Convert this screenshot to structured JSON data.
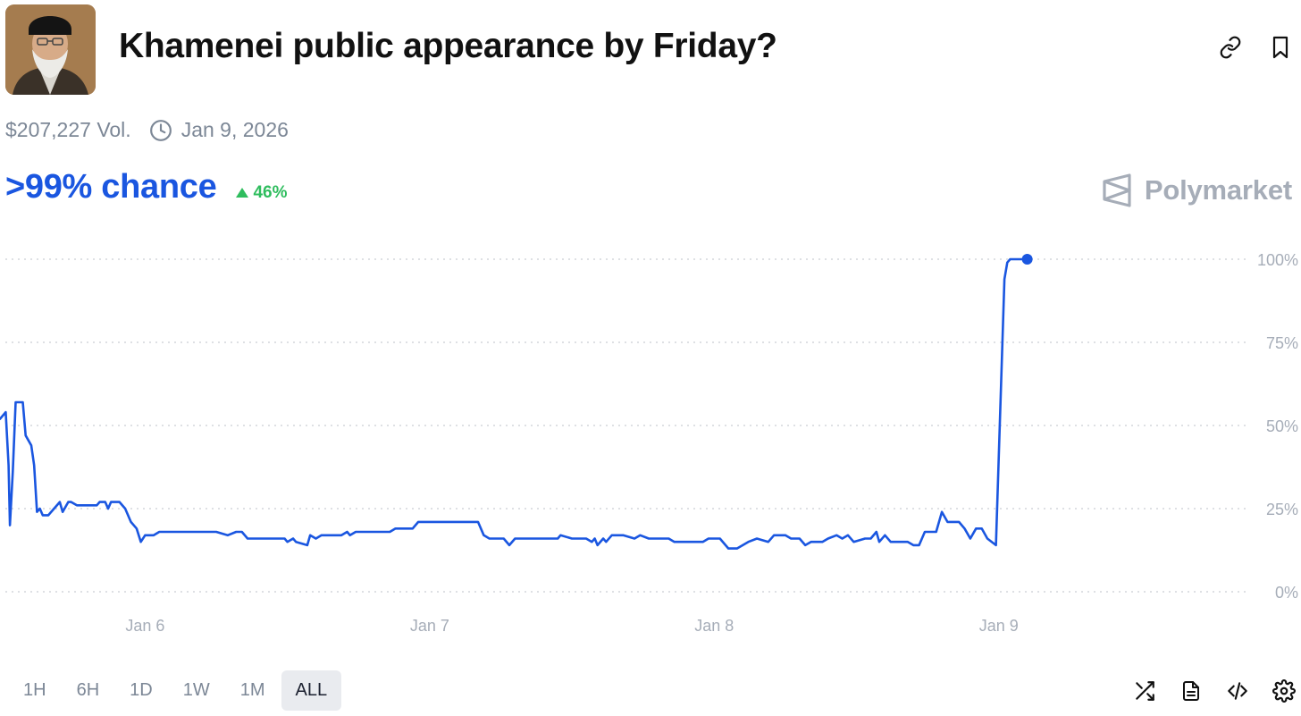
{
  "header": {
    "title": "Khamenei public appearance by Friday?",
    "volume": "$207,227 Vol.",
    "date": "Jan 9, 2026"
  },
  "summary": {
    "chance": ">99% chance",
    "change": "46%",
    "change_direction": "up"
  },
  "brand": {
    "name": "Polymarket"
  },
  "colors": {
    "accent": "#1a56e0",
    "positive": "#2fbd5e",
    "muted": "#7c8796"
  },
  "icons": {
    "link": "link-icon",
    "bookmark": "bookmark-icon",
    "clock": "clock-icon",
    "shuffle": "shuffle-icon",
    "document": "document-icon",
    "embed": "embed-icon",
    "settings": "gear-icon",
    "brand": "polymarket-logo-icon"
  },
  "time_ranges": {
    "options": [
      "1H",
      "6H",
      "1D",
      "1W",
      "1M",
      "ALL"
    ],
    "selected": "ALL"
  },
  "chart_data": {
    "type": "line",
    "x_unit": "days (Jan 5, 2026 = day 5)",
    "x_ticks": [
      {
        "x": 6,
        "label": "Jan 6"
      },
      {
        "x": 7,
        "label": "Jan 7"
      },
      {
        "x": 8,
        "label": "Jan 8"
      },
      {
        "x": 9,
        "label": "Jan 9"
      }
    ],
    "xlim": [
      5.49,
      9.88
    ],
    "y_ticks": [
      {
        "y": 0,
        "label": "0%"
      },
      {
        "y": 25,
        "label": "25%"
      },
      {
        "y": 50,
        "label": "50%"
      },
      {
        "y": 75,
        "label": "75%"
      },
      {
        "y": 100,
        "label": "100%"
      }
    ],
    "ylim": [
      0,
      100
    ],
    "grid": true,
    "series": [
      {
        "color": "#1a56e0",
        "points": [
          [
            5.49,
            52
          ],
          [
            5.51,
            54
          ],
          [
            5.52,
            38
          ],
          [
            5.525,
            20
          ],
          [
            5.535,
            36
          ],
          [
            5.545,
            57
          ],
          [
            5.57,
            57
          ],
          [
            5.58,
            47
          ],
          [
            5.6,
            44
          ],
          [
            5.61,
            38
          ],
          [
            5.62,
            24
          ],
          [
            5.63,
            25
          ],
          [
            5.64,
            23
          ],
          [
            5.66,
            23
          ],
          [
            5.7,
            27
          ],
          [
            5.71,
            24
          ],
          [
            5.73,
            27
          ],
          [
            5.74,
            27
          ],
          [
            5.76,
            26
          ],
          [
            5.79,
            26
          ],
          [
            5.83,
            26
          ],
          [
            5.84,
            27
          ],
          [
            5.86,
            27
          ],
          [
            5.87,
            25
          ],
          [
            5.88,
            27
          ],
          [
            5.91,
            27
          ],
          [
            5.93,
            25
          ],
          [
            5.95,
            21
          ],
          [
            5.97,
            19
          ],
          [
            5.985,
            15
          ],
          [
            6.0,
            17
          ],
          [
            6.03,
            17
          ],
          [
            6.05,
            18
          ],
          [
            6.1,
            18
          ],
          [
            6.2,
            18
          ],
          [
            6.25,
            18
          ],
          [
            6.29,
            17
          ],
          [
            6.32,
            18
          ],
          [
            6.34,
            18
          ],
          [
            6.36,
            16
          ],
          [
            6.4,
            16
          ],
          [
            6.45,
            16
          ],
          [
            6.49,
            16
          ],
          [
            6.5,
            15
          ],
          [
            6.52,
            16
          ],
          [
            6.53,
            15
          ],
          [
            6.57,
            14
          ],
          [
            6.58,
            17
          ],
          [
            6.6,
            16
          ],
          [
            6.62,
            17
          ],
          [
            6.65,
            17
          ],
          [
            6.67,
            17
          ],
          [
            6.69,
            17
          ],
          [
            6.71,
            18
          ],
          [
            6.72,
            17
          ],
          [
            6.74,
            18
          ],
          [
            6.8,
            18
          ],
          [
            6.86,
            18
          ],
          [
            6.88,
            19
          ],
          [
            6.94,
            19
          ],
          [
            6.96,
            21
          ],
          [
            7.0,
            21
          ],
          [
            7.1,
            21
          ],
          [
            7.17,
            21
          ],
          [
            7.19,
            17
          ],
          [
            7.21,
            16
          ],
          [
            7.26,
            16
          ],
          [
            7.28,
            14
          ],
          [
            7.3,
            16
          ],
          [
            7.35,
            16
          ],
          [
            7.42,
            16
          ],
          [
            7.45,
            16
          ],
          [
            7.46,
            17
          ],
          [
            7.5,
            16
          ],
          [
            7.55,
            16
          ],
          [
            7.57,
            15
          ],
          [
            7.58,
            16
          ],
          [
            7.59,
            14
          ],
          [
            7.61,
            16
          ],
          [
            7.62,
            15
          ],
          [
            7.64,
            17
          ],
          [
            7.68,
            17
          ],
          [
            7.72,
            16
          ],
          [
            7.74,
            17
          ],
          [
            7.77,
            16
          ],
          [
            7.8,
            16
          ],
          [
            7.84,
            16
          ],
          [
            7.86,
            15
          ],
          [
            7.9,
            15
          ],
          [
            7.96,
            15
          ],
          [
            7.98,
            16
          ],
          [
            8.02,
            16
          ],
          [
            8.05,
            13
          ],
          [
            8.08,
            13
          ],
          [
            8.12,
            15
          ],
          [
            8.15,
            16
          ],
          [
            8.19,
            15
          ],
          [
            8.21,
            17
          ],
          [
            8.25,
            17
          ],
          [
            8.27,
            16
          ],
          [
            8.3,
            16
          ],
          [
            8.32,
            14
          ],
          [
            8.34,
            15
          ],
          [
            8.38,
            15
          ],
          [
            8.4,
            16
          ],
          [
            8.43,
            17
          ],
          [
            8.45,
            16
          ],
          [
            8.47,
            17
          ],
          [
            8.49,
            15
          ],
          [
            8.53,
            16
          ],
          [
            8.55,
            16
          ],
          [
            8.57,
            18
          ],
          [
            8.58,
            15
          ],
          [
            8.6,
            17
          ],
          [
            8.62,
            15
          ],
          [
            8.68,
            15
          ],
          [
            8.7,
            14
          ],
          [
            8.72,
            14
          ],
          [
            8.74,
            18
          ],
          [
            8.78,
            18
          ],
          [
            8.8,
            24
          ],
          [
            8.82,
            21
          ],
          [
            8.86,
            21
          ],
          [
            8.88,
            19
          ],
          [
            8.9,
            16
          ],
          [
            8.92,
            19
          ],
          [
            8.94,
            19
          ],
          [
            8.96,
            16
          ],
          [
            8.99,
            14
          ],
          [
            9.02,
            94
          ],
          [
            9.03,
            99
          ],
          [
            9.04,
            100
          ],
          [
            9.1,
            100
          ]
        ],
        "end_marker": {
          "x": 9.1,
          "y": 100
        }
      }
    ]
  }
}
